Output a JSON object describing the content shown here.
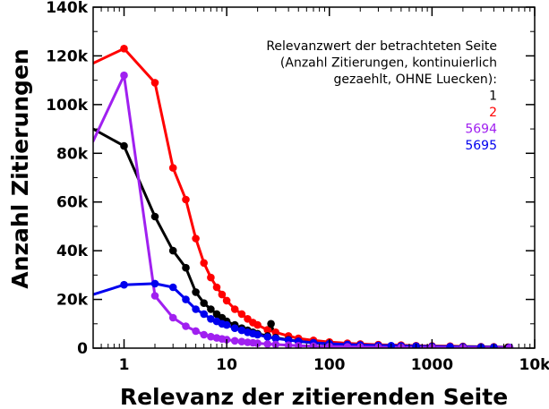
{
  "chart_data": {
    "type": "line",
    "title": "",
    "xlabel": "Relevanz der zitierenden Seite",
    "ylabel": "Anzahl Zitierungen",
    "x_scale": "log",
    "xlim": [
      0.5,
      10000
    ],
    "ylim": [
      0,
      140000
    ],
    "x_ticks": [
      1,
      10,
      100,
      1000,
      10000
    ],
    "x_tick_labels": [
      "1",
      "10",
      "100",
      "1000",
      "10k"
    ],
    "y_ticks": [
      0,
      20000,
      40000,
      60000,
      80000,
      100000,
      120000,
      140000
    ],
    "y_tick_labels": [
      "0",
      "20k",
      "40k",
      "60k",
      "80k",
      "100k",
      "120k",
      "140k"
    ],
    "grid": false,
    "legend": {
      "placement": "top-right",
      "title_lines": [
        "Relevanzwert der betrachteten Seite",
        "(Anzahl Zitierungen, kontinuierlich",
        "gezaehlt, OHNE Luecken):"
      ]
    },
    "series": [
      {
        "name": "2",
        "color": "#ff0000",
        "points": [
          [
            0.5,
            117000
          ],
          [
            1,
            123000
          ],
          [
            2,
            109000
          ],
          [
            3,
            74000
          ],
          [
            4,
            61000
          ],
          [
            5,
            45000
          ],
          [
            6,
            35000
          ],
          [
            7,
            29000
          ],
          [
            8,
            25000
          ],
          [
            9,
            22000
          ],
          [
            10,
            19500
          ],
          [
            12,
            16000
          ],
          [
            14,
            14000
          ],
          [
            16,
            12000
          ],
          [
            18,
            10500
          ],
          [
            20,
            9500
          ],
          [
            25,
            7500
          ],
          [
            30,
            6500
          ],
          [
            40,
            5000
          ],
          [
            50,
            4000
          ],
          [
            70,
            3200
          ],
          [
            100,
            2500
          ],
          [
            150,
            2000
          ],
          [
            200,
            1700
          ],
          [
            300,
            1400
          ],
          [
            500,
            1200
          ],
          [
            700,
            1000
          ],
          [
            1000,
            900
          ],
          [
            1500,
            800
          ],
          [
            2000,
            700
          ],
          [
            3000,
            600
          ],
          [
            4000,
            500
          ],
          [
            5500,
            400
          ]
        ]
      },
      {
        "name": "1",
        "color": "#000000",
        "points": [
          [
            0.5,
            90000
          ],
          [
            1,
            83000
          ],
          [
            2,
            54000
          ],
          [
            3,
            40000
          ],
          [
            4,
            33000
          ],
          [
            5,
            23000
          ],
          [
            6,
            18500
          ],
          [
            7,
            16000
          ],
          [
            8,
            14000
          ],
          [
            9,
            12500
          ],
          [
            10,
            11000
          ],
          [
            12,
            9500
          ],
          [
            14,
            8200
          ],
          [
            16,
            7300
          ],
          [
            18,
            6500
          ],
          [
            20,
            5900
          ],
          [
            25,
            5000
          ],
          [
            27,
            10000
          ],
          [
            30,
            4300
          ],
          [
            40,
            3400
          ],
          [
            50,
            2800
          ],
          [
            70,
            2200
          ],
          [
            100,
            1700
          ],
          [
            150,
            1400
          ],
          [
            200,
            1200
          ],
          [
            300,
            1000
          ],
          [
            500,
            800
          ],
          [
            700,
            700
          ],
          [
            1000,
            600
          ],
          [
            2000,
            500
          ],
          [
            3000,
            400
          ],
          [
            5500,
            300
          ]
        ]
      },
      {
        "name": "5695",
        "color": "#0000ee",
        "points": [
          [
            0.5,
            22000
          ],
          [
            1,
            26000
          ],
          [
            2,
            26500
          ],
          [
            3,
            25000
          ],
          [
            4,
            20000
          ],
          [
            5,
            16000
          ],
          [
            6,
            14000
          ],
          [
            7,
            12000
          ],
          [
            8,
            11000
          ],
          [
            9,
            10000
          ],
          [
            10,
            9500
          ],
          [
            12,
            8200
          ],
          [
            14,
            7300
          ],
          [
            16,
            6500
          ],
          [
            18,
            6000
          ],
          [
            20,
            5500
          ],
          [
            25,
            4600
          ],
          [
            30,
            4000
          ],
          [
            40,
            3300
          ],
          [
            50,
            2800
          ],
          [
            70,
            2200
          ],
          [
            100,
            1800
          ],
          [
            150,
            1500
          ],
          [
            200,
            1300
          ],
          [
            300,
            1100
          ],
          [
            400,
            1000
          ],
          [
            500,
            900
          ],
          [
            700,
            800
          ],
          [
            1000,
            700
          ],
          [
            1500,
            600
          ],
          [
            2000,
            550
          ],
          [
            3000,
            450
          ],
          [
            4000,
            400
          ],
          [
            5695,
            300
          ]
        ]
      },
      {
        "name": "5694",
        "color": "#a020f0",
        "points": [
          [
            0.5,
            85000
          ],
          [
            1,
            112000
          ],
          [
            2,
            21500
          ],
          [
            3,
            12500
          ],
          [
            4,
            9000
          ],
          [
            5,
            7000
          ],
          [
            6,
            5500
          ],
          [
            7,
            4700
          ],
          [
            8,
            4200
          ],
          [
            9,
            3800
          ],
          [
            10,
            3500
          ],
          [
            12,
            3000
          ],
          [
            14,
            2700
          ],
          [
            16,
            2400
          ],
          [
            18,
            2200
          ],
          [
            20,
            2000
          ],
          [
            25,
            1700
          ],
          [
            30,
            1500
          ],
          [
            40,
            1200
          ],
          [
            50,
            1000
          ],
          [
            70,
            800
          ],
          [
            100,
            650
          ],
          [
            150,
            550
          ],
          [
            200,
            450
          ],
          [
            300,
            380
          ],
          [
            500,
            300
          ],
          [
            1000,
            250
          ],
          [
            2000,
            200
          ],
          [
            5694,
            150
          ]
        ]
      }
    ],
    "legend_order": [
      "1",
      "2",
      "5694",
      "5695"
    ]
  }
}
